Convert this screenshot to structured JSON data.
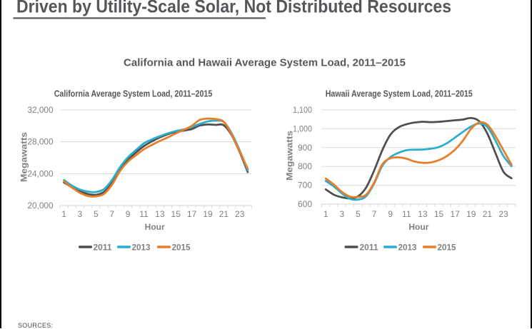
{
  "headline": {
    "text": "Driven by Utility-Scale Solar, Not Distributed Resources"
  },
  "figure_title": "California and Hawaii Average System Load, 2011–2015",
  "sources_label": "SOURCES:",
  "colors": {
    "border": "#000000",
    "headline_text": "#55565a",
    "title_text": "#595959",
    "axis_text": "#808080",
    "legend_text": "#7f7f7f",
    "gridline": "#d9d9d9",
    "series_2011": "#4d4e50",
    "series_2013": "#2aaecb",
    "series_2015": "#e87e27"
  },
  "chart_data": [
    {
      "type": "line",
      "title": "California Average System Load, 2011–2015",
      "xlabel": "Hour",
      "ylabel": "Megawatts",
      "x": [
        1,
        2,
        3,
        4,
        5,
        6,
        7,
        8,
        9,
        10,
        11,
        12,
        13,
        14,
        15,
        16,
        17,
        18,
        19,
        20,
        21,
        22,
        23,
        24
      ],
      "xtick_labels": [
        "1",
        "3",
        "5",
        "7",
        "9",
        "11",
        "13",
        "15",
        "17",
        "19",
        "21",
        "23"
      ],
      "ylim": [
        20000,
        32000
      ],
      "yticks": [
        20000,
        24000,
        28000,
        32000
      ],
      "ytick_labels": [
        "20,000",
        "24,000",
        "28,000",
        "32,000"
      ],
      "grid": "horizontal",
      "legend_position": "bottom",
      "series": [
        {
          "name": "2011",
          "color_key": "series_2011",
          "values": [
            22900,
            22300,
            21800,
            21450,
            21350,
            21700,
            22800,
            24400,
            25700,
            26650,
            27450,
            28050,
            28550,
            28950,
            29250,
            29400,
            29600,
            30050,
            30170,
            30120,
            30080,
            28800,
            26700,
            24200
          ]
        },
        {
          "name": "2013",
          "color_key": "series_2013",
          "values": [
            23200,
            22500,
            22000,
            21750,
            21700,
            22050,
            23200,
            24800,
            26050,
            26950,
            27800,
            28300,
            28700,
            29050,
            29350,
            29550,
            29850,
            30250,
            30550,
            30650,
            30480,
            29050,
            26900,
            24400
          ]
        },
        {
          "name": "2015",
          "color_key": "series_2015",
          "values": [
            23050,
            22250,
            21600,
            21200,
            21150,
            21450,
            22600,
            24300,
            25500,
            26300,
            27050,
            27600,
            28100,
            28550,
            29050,
            29500,
            30000,
            30750,
            30900,
            30850,
            30500,
            28900,
            26800,
            24600
          ]
        }
      ]
    },
    {
      "type": "line",
      "title": "Hawaii Average System Load, 2011–2015",
      "xlabel": "Hour",
      "ylabel": "Megawatts",
      "x": [
        1,
        2,
        3,
        4,
        5,
        6,
        7,
        8,
        9,
        10,
        11,
        12,
        13,
        14,
        15,
        16,
        17,
        18,
        19,
        20,
        21,
        22,
        23,
        24
      ],
      "xtick_labels": [
        "1",
        "3",
        "5",
        "7",
        "9",
        "11",
        "13",
        "15",
        "17",
        "19",
        "21",
        "23"
      ],
      "ylim": [
        600,
        1100
      ],
      "yticks": [
        600,
        700,
        800,
        900,
        1000,
        1100
      ],
      "ytick_labels": [
        "600",
        "700",
        "800",
        "900",
        "1,000",
        "1,100"
      ],
      "grid": "horizontal",
      "legend_position": "bottom",
      "series": [
        {
          "name": "2011",
          "color_key": "series_2011",
          "values": [
            678,
            650,
            636,
            630,
            641,
            688,
            779,
            886,
            968,
            1007,
            1024,
            1033,
            1037,
            1035,
            1037,
            1041,
            1045,
            1049,
            1057,
            1040,
            975,
            872,
            772,
            737
          ]
        },
        {
          "name": "2013",
          "color_key": "series_2013",
          "values": [
            723,
            694,
            657,
            628,
            624,
            642,
            710,
            803,
            849,
            872,
            886,
            889,
            890,
            894,
            903,
            923,
            953,
            984,
            1012,
            1028,
            1010,
            938,
            855,
            801
          ]
        },
        {
          "name": "2015",
          "color_key": "series_2015",
          "values": [
            736,
            704,
            665,
            640,
            638,
            650,
            715,
            811,
            843,
            848,
            841,
            826,
            819,
            821,
            833,
            855,
            889,
            938,
            1000,
            1033,
            1022,
            962,
            886,
            809
          ]
        }
      ]
    }
  ]
}
